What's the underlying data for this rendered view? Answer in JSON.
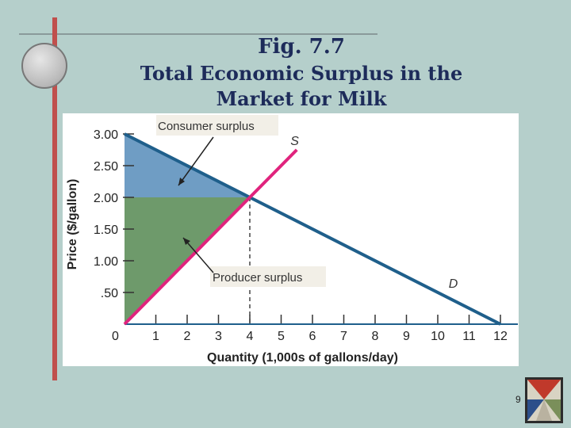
{
  "slide": {
    "title_line1": "Fig. 7.7",
    "title_line2": "Total Economic Surplus in the",
    "title_line3": "Market for Milk",
    "page_number": "9"
  },
  "colors": {
    "background": "#b5cfcb",
    "consumer_surplus": "#6f9dc4",
    "producer_surplus": "#6e9a6b",
    "demand_line": "#1f5f8b",
    "supply_line": "#e0237d",
    "title": "#1d2b5a",
    "accent_bar": "#c0504d"
  },
  "chart_data": {
    "type": "line",
    "xlabel": "Quantity (1,000s of gallons/day)",
    "ylabel": "Price ($/gallon)",
    "xlim": [
      0,
      12
    ],
    "ylim": [
      0,
      3
    ],
    "x_ticks": [
      1,
      2,
      3,
      4,
      5,
      6,
      7,
      8,
      9,
      10,
      11,
      12
    ],
    "x_tick_labels": [
      "1",
      "2",
      "3",
      "4",
      "5",
      "6",
      "7",
      "8",
      "9",
      "10",
      "11",
      "12"
    ],
    "origin_label": "0",
    "y_ticks": [
      0.5,
      1.0,
      1.5,
      2.0,
      2.5,
      3.0
    ],
    "y_tick_labels": [
      ".50",
      "1.00",
      "1.50",
      "2.00",
      "2.50",
      "3.00"
    ],
    "series": [
      {
        "name": "D",
        "x": [
          0,
          12
        ],
        "y": [
          3.0,
          0.0
        ]
      },
      {
        "name": "S",
        "x": [
          0,
          5.5
        ],
        "y": [
          0.0,
          2.75
        ]
      }
    ],
    "equilibrium": {
      "quantity": 4,
      "price": 2.0
    },
    "areas": [
      {
        "label": "Consumer surplus",
        "points": [
          [
            0,
            3.0
          ],
          [
            0,
            2.0
          ],
          [
            4,
            2.0
          ]
        ]
      },
      {
        "label": "Producer surplus",
        "points": [
          [
            0,
            2.0
          ],
          [
            0,
            0.0
          ],
          [
            4,
            2.0
          ]
        ]
      }
    ],
    "grid": false
  }
}
